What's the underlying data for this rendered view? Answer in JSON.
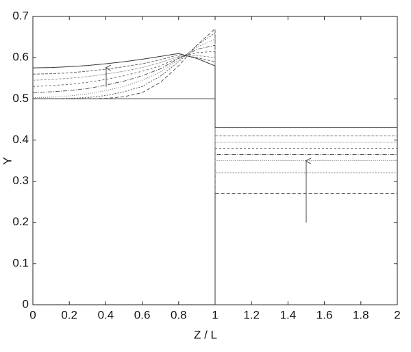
{
  "chart_data": {
    "type": "line",
    "x_label": "Z / L",
    "y_label": "Y",
    "x": [
      0,
      0.1,
      0.2,
      0.3,
      0.4,
      0.5,
      0.6,
      0.7,
      0.8,
      0.9,
      1,
      1,
      2
    ],
    "xlim": [
      0,
      2
    ],
    "xticks": [
      0,
      0.2,
      0.4,
      0.6,
      0.8,
      1,
      1.2,
      1.4,
      1.6,
      1.8,
      2
    ],
    "ylim": [
      0,
      0.7
    ],
    "yticks": [
      0,
      0.1,
      0.2,
      0.3,
      0.4,
      0.5,
      0.6,
      0.7
    ],
    "series": [
      {
        "color": "#333333",
        "dash": "none",
        "values": [
          0.5,
          0.5,
          0.5,
          0.5,
          0.5,
          0.5,
          0.5,
          0.5,
          0.5,
          0.5,
          0.5,
          0,
          0
        ]
      },
      {
        "color": "#555555",
        "dash": "5 3",
        "values": [
          0.5,
          0.5,
          0.5,
          0.5,
          0.501,
          0.505,
          0.515,
          0.54,
          0.58,
          0.63,
          0.67,
          0.27,
          0.27
        ]
      },
      {
        "color": "#555555",
        "dash": "2 2",
        "values": [
          0.5,
          0.5,
          0.501,
          0.503,
          0.508,
          0.517,
          0.53,
          0.555,
          0.59,
          0.63,
          0.66,
          0.32,
          0.32
        ]
      },
      {
        "color": "#666666",
        "dash": "1 2",
        "values": [
          0.503,
          0.504,
          0.507,
          0.512,
          0.52,
          0.53,
          0.545,
          0.565,
          0.595,
          0.625,
          0.645,
          0.35,
          0.35
        ]
      },
      {
        "color": "#555555",
        "dash": "6 2 1 2",
        "values": [
          0.515,
          0.517,
          0.52,
          0.525,
          0.533,
          0.543,
          0.556,
          0.573,
          0.598,
          0.62,
          0.63,
          0.365,
          0.365
        ]
      },
      {
        "color": "#666666",
        "dash": "3 3",
        "values": [
          0.53,
          0.532,
          0.535,
          0.54,
          0.547,
          0.556,
          0.567,
          0.58,
          0.6,
          0.612,
          0.615,
          0.38,
          0.38
        ]
      },
      {
        "color": "#777777",
        "dash": "1 1",
        "values": [
          0.545,
          0.547,
          0.55,
          0.554,
          0.56,
          0.567,
          0.576,
          0.588,
          0.603,
          0.605,
          0.6,
          0.395,
          0.395
        ]
      },
      {
        "color": "#666666",
        "dash": "4 2",
        "values": [
          0.56,
          0.561,
          0.563,
          0.567,
          0.572,
          0.578,
          0.585,
          0.595,
          0.607,
          0.6,
          0.59,
          0.41,
          0.41
        ]
      },
      {
        "color": "#333333",
        "dash": "none",
        "values": [
          0.575,
          0.576,
          0.578,
          0.581,
          0.585,
          0.59,
          0.596,
          0.603,
          0.61,
          0.598,
          0.58,
          0.43,
          0.43
        ]
      }
    ]
  }
}
